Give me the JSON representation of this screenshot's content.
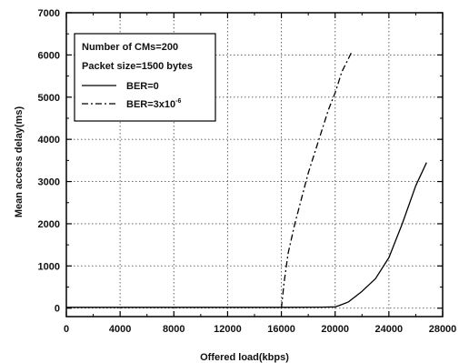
{
  "chart_data": {
    "type": "line",
    "xlabel": "Offered load(kbps)",
    "ylabel": "Mean access delay(ms)",
    "xlim": [
      0,
      28000
    ],
    "ylim": [
      -200,
      7000
    ],
    "x_ticks": [
      0,
      4000,
      8000,
      12000,
      16000,
      20000,
      24000,
      28000
    ],
    "y_ticks": [
      0,
      1000,
      2000,
      3000,
      4000,
      5000,
      6000,
      7000
    ],
    "grid": true,
    "legend_position": "top-left",
    "legend": {
      "lines": [
        "Number of CMs=200",
        "Packet size=1500 bytes"
      ],
      "series_labels": [
        "BER=0",
        "BER=3x10"
      ],
      "ber_superscript": "-6"
    },
    "series": [
      {
        "name": "BER=0",
        "style": "solid",
        "x": [
          0,
          4000,
          8000,
          12000,
          16000,
          19000,
          20000,
          20300,
          21000,
          22000,
          23000,
          24000,
          25000,
          26000,
          26800
        ],
        "y": [
          20,
          20,
          20,
          20,
          20,
          25,
          30,
          60,
          150,
          400,
          700,
          1200,
          2000,
          2900,
          3450
        ]
      },
      {
        "name": "BER=3x10",
        "style": "dashdot",
        "x": [
          16000,
          16200,
          16500,
          17000,
          18000,
          19000,
          19500,
          20000,
          20500,
          21200
        ],
        "y": [
          0,
          600,
          1300,
          2000,
          3200,
          4200,
          4700,
          5100,
          5600,
          6050
        ]
      }
    ]
  }
}
